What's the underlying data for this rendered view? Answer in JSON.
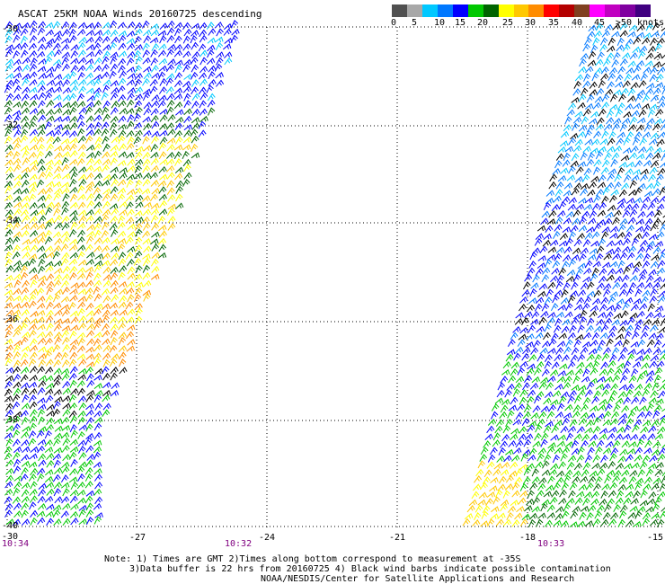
{
  "header": {
    "title": "ASCAT 25KM NOAA Winds 20160725 descending"
  },
  "legend": {
    "unit_label": ">50 knots",
    "ticks": [
      "0",
      "5",
      "10",
      "15",
      "20",
      "25",
      "30",
      "35",
      "40",
      "45"
    ],
    "colors": [
      "#505050",
      "#a8a8a8",
      "#00c8ff",
      "#0078ff",
      "#0000ff",
      "#00c800",
      "#006400",
      "#ffff00",
      "#ffc800",
      "#ff8c00",
      "#ff0000",
      "#b40000",
      "#804020",
      "#ff00ff",
      "#c000c0",
      "#8000a0",
      "#400080"
    ]
  },
  "axes": {
    "lat_labels": [
      "-30",
      "-32",
      "-34",
      "-36",
      "-38",
      "-40"
    ],
    "lon_labels": [
      "-30",
      "-27",
      "-24",
      "-21",
      "-18",
      "-15"
    ]
  },
  "pass_times": [
    "10:34",
    "10:32",
    "10:33"
  ],
  "notes": {
    "line1": "Note: 1) Times are GMT 2)Times along bottom correspond to measurement at -35S",
    "line2": "3)Data buffer is 22 hrs from 20160725 4) Black wind barbs indicate possible contamination",
    "line3": "NOAA/NESDIS/Center for Satellite Applications and Research"
  }
}
